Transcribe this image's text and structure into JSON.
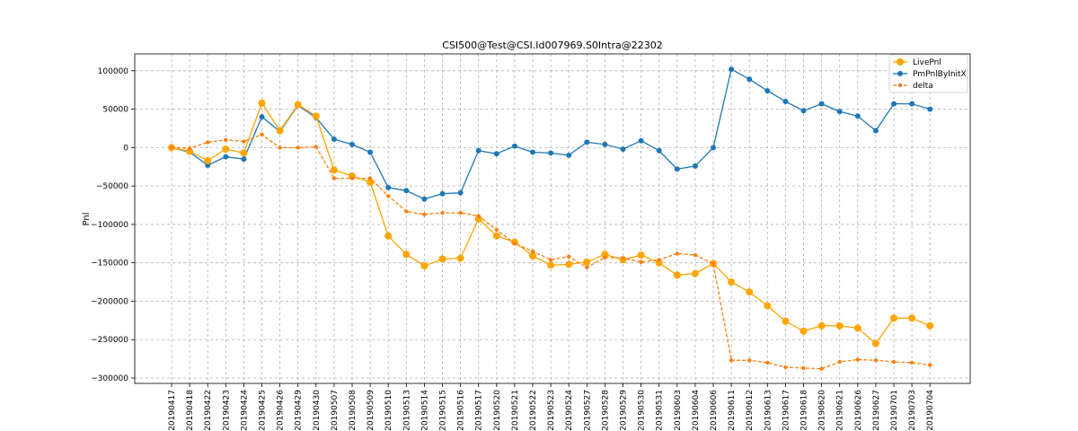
{
  "chart_data": {
    "type": "line",
    "title": "CSI500@Test@CSI.Id007969.S0Intra@22302",
    "xlabel": "",
    "ylabel": "Pnl",
    "ylim": [
      -307000,
      122000
    ],
    "yticks": [
      100000,
      50000,
      0,
      -50000,
      -100000,
      -150000,
      -200000,
      -250000,
      -300000
    ],
    "ytick_labels": [
      "100000",
      "50000",
      "0",
      "−50000",
      "−100000",
      "−150000",
      "−200000",
      "−250000",
      "−300000"
    ],
    "grid": true,
    "legend_position": "top-right",
    "x": [
      "20190417",
      "20190418",
      "20190422",
      "20190423",
      "20190424",
      "20190425",
      "20190426",
      "20190429",
      "20190430",
      "20190507",
      "20190508",
      "20190509",
      "20190510",
      "20190513",
      "20190514",
      "20190515",
      "20190516",
      "20190517",
      "20190520",
      "20190521",
      "20190522",
      "20190523",
      "20190524",
      "20190527",
      "20190528",
      "20190529",
      "20190530",
      "20190531",
      "20190603",
      "20190604",
      "20190606",
      "20190611",
      "20190612",
      "20190613",
      "20190617",
      "20190618",
      "20190620",
      "20190621",
      "20190626",
      "20190627",
      "20190701",
      "20190703",
      "20190704"
    ],
    "series": [
      {
        "name": "LivePnl",
        "color": "#ffa500",
        "style": "solid",
        "marker": "large-circle",
        "values": [
          0,
          -5000,
          -17000,
          -2000,
          -7000,
          58000,
          22000,
          56000,
          41000,
          -29000,
          -37000,
          -45000,
          -115000,
          -139000,
          -154000,
          -145000,
          -144000,
          -93000,
          -115000,
          -123000,
          -141000,
          -153000,
          -152000,
          -149000,
          -139000,
          -146000,
          -140000,
          -150000,
          -166000,
          -164000,
          -151000,
          -175000,
          -188000,
          -206000,
          -226000,
          -239000,
          -232000,
          -232000,
          -235000,
          -255000,
          -222000,
          -222000,
          -232000
        ]
      },
      {
        "name": "PmPnlByInitX",
        "color": "#1f77b4",
        "style": "solid",
        "marker": "circle",
        "values": [
          0,
          -6000,
          -23000,
          -12000,
          -15000,
          40000,
          21000,
          55000,
          39000,
          11000,
          4000,
          -6000,
          -52000,
          -56000,
          -67000,
          -60000,
          -59000,
          -4000,
          -8000,
          2000,
          -6000,
          -7000,
          -10000,
          7000,
          4000,
          -2000,
          9000,
          -4000,
          -28000,
          -24000,
          0,
          102000,
          89000,
          74000,
          60000,
          48000,
          57000,
          47000,
          41000,
          22000,
          57000,
          57000,
          50000
        ]
      },
      {
        "name": "delta",
        "color": "#ff7f0e",
        "style": "dashed",
        "marker": "small-circle",
        "values": [
          0,
          -1000,
          7000,
          10000,
          8000,
          17000,
          0,
          0,
          1000,
          -40000,
          -40000,
          -40000,
          -63000,
          -83000,
          -87000,
          -85000,
          -85000,
          -89000,
          -107000,
          -125000,
          -135000,
          -146000,
          -142000,
          -156000,
          -143000,
          -144000,
          -149000,
          -146000,
          -138000,
          -140000,
          -151000,
          -277000,
          -277000,
          -280000,
          -286000,
          -287000,
          -288000,
          -279000,
          -276000,
          -277000,
          -279000,
          -280000,
          -283000
        ]
      }
    ]
  }
}
